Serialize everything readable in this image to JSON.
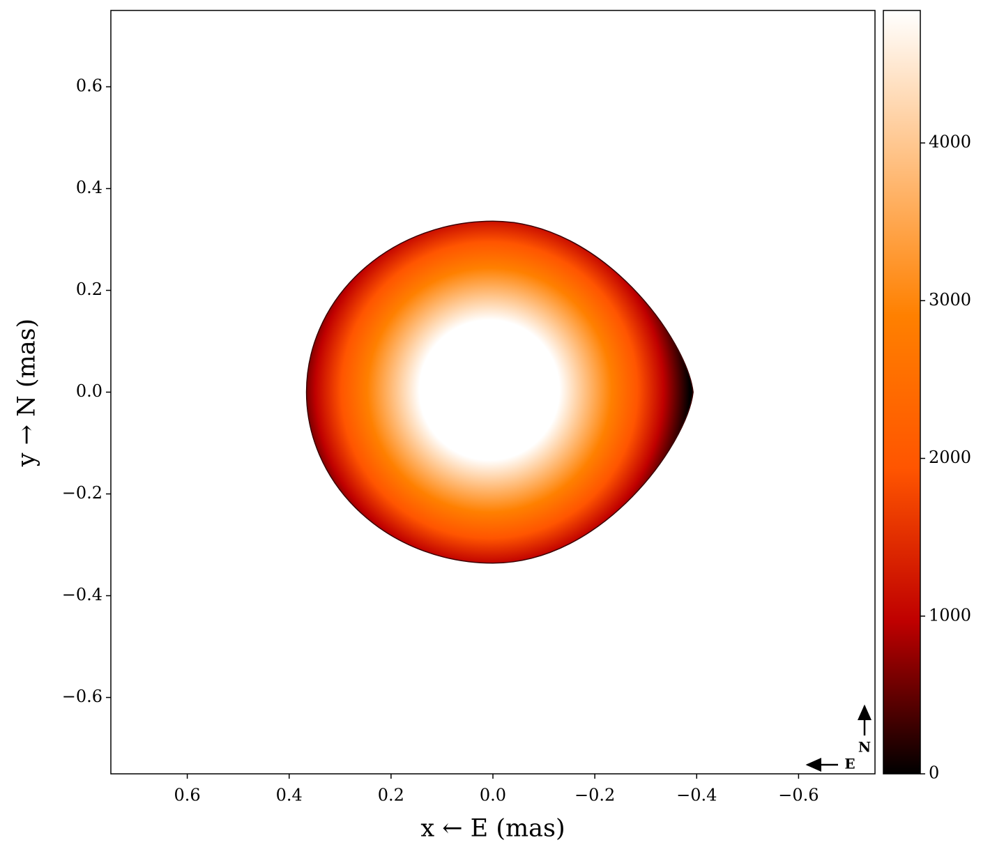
{
  "chart_data": {
    "type": "image",
    "xlabel": "x ← E (mas)",
    "ylabel": "y → N (mas)",
    "xlim": [
      0.75,
      -0.75
    ],
    "ylim": [
      -0.75,
      0.75
    ],
    "xticks": [
      0.6,
      0.4,
      0.2,
      {
        "value": 0,
        "label": "0.0"
      },
      {
        "value": -0.2,
        "label": "−0.2"
      },
      {
        "value": -0.4,
        "label": "−0.4"
      },
      {
        "value": -0.6,
        "label": "−0.6"
      }
    ],
    "yticks": [
      {
        "value": -0.6,
        "label": "−0.6"
      },
      {
        "value": -0.4,
        "label": "−0.4"
      },
      {
        "value": -0.2,
        "label": "−0.2"
      },
      {
        "value": 0,
        "label": "0.0"
      },
      0.2,
      0.4,
      0.6
    ],
    "image": {
      "x_extent": [
        0.366,
        -0.393
      ],
      "y_extent": [
        -0.336,
        0.336
      ]
    },
    "colormap": [
      "#000000",
      "#bf0000",
      "#ff5500",
      "#ff8000",
      "#ffbf80",
      "#ffffff"
    ],
    "colorbar": {
      "clim": [
        0,
        4840
      ],
      "ticks": [
        0,
        1000,
        2000,
        3000,
        4000
      ]
    },
    "compass": {
      "north": "N",
      "east": "E"
    }
  }
}
